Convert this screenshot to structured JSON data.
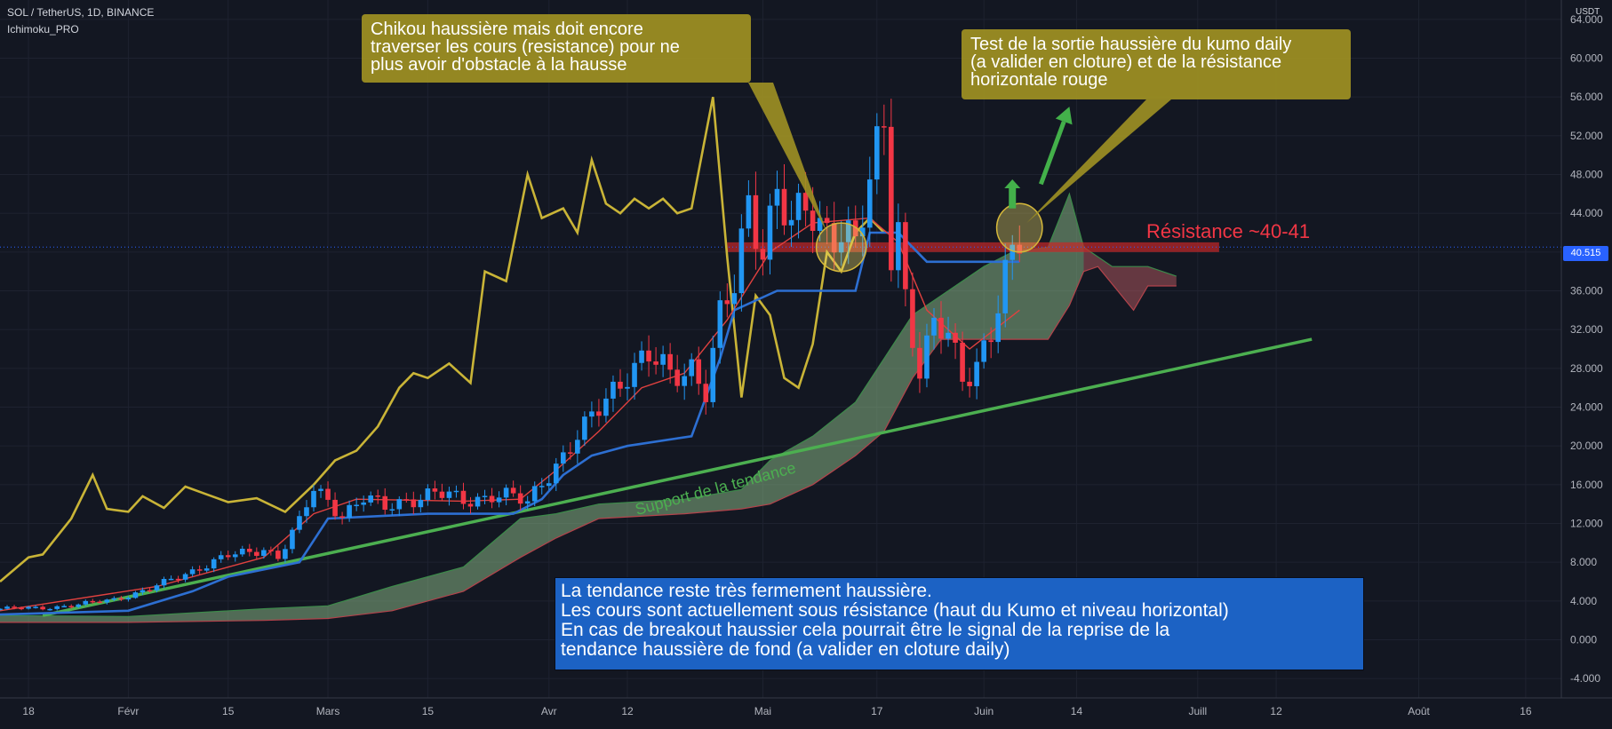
{
  "header": {
    "symbol_line": "SOL / TetherUS, 1D, BINANCE",
    "indicator": "Ichimoku_PRO"
  },
  "axis": {
    "unit": "USDT",
    "current_price": "40.515"
  },
  "annotations": {
    "chikou_note": "Chikou haussière mais doit encore\ntraverser les cours (resistance) pour ne\nplus avoir d'obstacle à la hausse",
    "kumo_note": "Test de la sortie haussière du kumo daily\n(a valider en cloture) et de la résistance\nhorizontale rouge",
    "resistance_label": "Résistance ~40-41",
    "trend_label": "Support de la tendance",
    "summary_note": "La tendance reste très fermement haussière.\nLes cours sont actuellement sous résistance (haut du Kumo et niveau horizontal)\nEn cas de breakout haussier cela pourrait être le signal de la reprise de la\ntendance haussière de fond (a valider en cloture daily)"
  },
  "colors": {
    "background": "#131722",
    "up_candle": "#2196f3",
    "down_candle": "#f23645",
    "chikou": "#c9b437",
    "kijun": "#2d6fd2",
    "tenkan": "#e0413f",
    "kumo_bull": "#8fbf8a",
    "kumo_bear": "#b85a60",
    "trendline": "#4caf50",
    "resistance": "#c62828",
    "note_yellow": "#a09123",
    "note_blue": "#1c62c4"
  },
  "chart_data": {
    "type": "candlestick",
    "title": "SOL / TetherUS, 1D, BINANCE",
    "ylabel": "USDT",
    "ylim": [
      -6,
      66
    ],
    "y_ticks": [
      -4,
      0,
      4,
      8,
      12,
      16,
      20,
      24,
      28,
      32,
      36,
      40,
      44,
      48,
      52,
      56,
      60,
      64
    ],
    "x_range": [
      "2021-01-14",
      "2021-08-21"
    ],
    "x_ticks": [
      {
        "date": "2021-01-18",
        "label": "18"
      },
      {
        "date": "2021-02-01",
        "label": "Févr"
      },
      {
        "date": "2021-02-15",
        "label": "15"
      },
      {
        "date": "2021-03-01",
        "label": "Mars"
      },
      {
        "date": "2021-03-15",
        "label": "15"
      },
      {
        "date": "2021-04-01",
        "label": "Avr"
      },
      {
        "date": "2021-04-12",
        "label": "12"
      },
      {
        "date": "2021-05-01",
        "label": "Mai"
      },
      {
        "date": "2021-05-17",
        "label": "17"
      },
      {
        "date": "2021-06-01",
        "label": "Juin"
      },
      {
        "date": "2021-06-14",
        "label": "14"
      },
      {
        "date": "2021-07-01",
        "label": "Juill"
      },
      {
        "date": "2021-07-12",
        "label": "12"
      },
      {
        "date": "2021-08-01",
        "label": "Août"
      },
      {
        "date": "2021-08-16",
        "label": "16"
      }
    ],
    "price_path": [
      [
        "2021-01-14",
        3.2
      ],
      [
        "2021-01-20",
        3.3
      ],
      [
        "2021-01-25",
        3.6
      ],
      [
        "2021-01-30",
        4.2
      ],
      [
        "2021-02-04",
        5.2
      ],
      [
        "2021-02-08",
        6.5
      ],
      [
        "2021-02-11",
        7.5
      ],
      [
        "2021-02-15",
        8.6
      ],
      [
        "2021-02-18",
        9.0
      ],
      [
        "2021-02-20",
        9.5
      ],
      [
        "2021-02-22",
        8.6
      ],
      [
        "2021-02-25",
        12.0
      ],
      [
        "2021-02-27",
        15.5
      ],
      [
        "2021-03-01",
        14.5
      ],
      [
        "2021-03-03",
        13.0
      ],
      [
        "2021-03-06",
        14.5
      ],
      [
        "2021-03-09",
        13.6
      ],
      [
        "2021-03-12",
        14.6
      ],
      [
        "2021-03-16",
        15.0
      ],
      [
        "2021-03-20",
        14.4
      ],
      [
        "2021-03-24",
        15.0
      ],
      [
        "2021-03-27",
        14.6
      ],
      [
        "2021-03-29",
        14.0
      ],
      [
        "2021-03-31",
        16.5
      ],
      [
        "2021-04-03",
        19.0
      ],
      [
        "2021-04-06",
        21.5
      ],
      [
        "2021-04-09",
        25.0
      ],
      [
        "2021-04-12",
        28.0
      ],
      [
        "2021-04-15",
        29.0
      ],
      [
        "2021-04-18",
        27.0
      ],
      [
        "2021-04-21",
        28.5
      ],
      [
        "2021-04-23",
        26.0
      ],
      [
        "2021-04-25",
        33.0
      ],
      [
        "2021-04-27",
        36.0
      ],
      [
        "2021-04-29",
        45.0
      ],
      [
        "2021-05-01",
        41.0
      ],
      [
        "2021-05-03",
        47.0
      ],
      [
        "2021-05-05",
        42.0
      ],
      [
        "2021-05-07",
        44.0
      ],
      [
        "2021-05-09",
        42.5
      ],
      [
        "2021-05-12",
        43.0
      ],
      [
        "2021-05-14",
        41.0
      ],
      [
        "2021-05-16",
        46.0
      ],
      [
        "2021-05-18",
        53.0
      ],
      [
        "2021-05-19",
        40.0
      ],
      [
        "2021-05-20",
        43.0
      ],
      [
        "2021-05-21",
        36.0
      ],
      [
        "2021-05-23",
        28.0
      ],
      [
        "2021-05-25",
        32.0
      ],
      [
        "2021-05-27",
        31.0
      ],
      [
        "2021-05-29",
        27.0
      ],
      [
        "2021-05-31",
        29.0
      ],
      [
        "2021-06-02",
        32.0
      ],
      [
        "2021-06-04",
        37.0
      ],
      [
        "2021-06-06",
        40.5
      ]
    ],
    "chikou_path": [
      [
        "2021-01-14",
        6.0
      ],
      [
        "2021-01-18",
        8.5
      ],
      [
        "2021-01-20",
        8.8
      ],
      [
        "2021-01-24",
        12.5
      ],
      [
        "2021-01-27",
        17.0
      ],
      [
        "2021-01-29",
        13.5
      ],
      [
        "2021-02-01",
        13.2
      ],
      [
        "2021-02-03",
        14.8
      ],
      [
        "2021-02-06",
        13.6
      ],
      [
        "2021-02-09",
        15.8
      ],
      [
        "2021-02-12",
        15.0
      ],
      [
        "2021-02-15",
        14.2
      ],
      [
        "2021-02-19",
        14.6
      ],
      [
        "2021-02-23",
        13.2
      ],
      [
        "2021-02-27",
        16.0
      ],
      [
        "2021-03-02",
        18.5
      ],
      [
        "2021-03-05",
        19.5
      ],
      [
        "2021-03-08",
        22.0
      ],
      [
        "2021-03-11",
        26.0
      ],
      [
        "2021-03-13",
        27.5
      ],
      [
        "2021-03-15",
        27.0
      ],
      [
        "2021-03-18",
        28.5
      ],
      [
        "2021-03-21",
        26.5
      ],
      [
        "2021-03-23",
        38.0
      ],
      [
        "2021-03-26",
        37.0
      ],
      [
        "2021-03-29",
        48.0
      ],
      [
        "2021-03-31",
        43.5
      ],
      [
        "2021-04-03",
        44.5
      ],
      [
        "2021-04-05",
        42.0
      ],
      [
        "2021-04-07",
        49.5
      ],
      [
        "2021-04-09",
        45.0
      ],
      [
        "2021-04-11",
        44.0
      ],
      [
        "2021-04-13",
        45.5
      ],
      [
        "2021-04-15",
        44.5
      ],
      [
        "2021-04-17",
        45.5
      ],
      [
        "2021-04-19",
        44.0
      ],
      [
        "2021-04-21",
        44.5
      ],
      [
        "2021-04-24",
        56.0
      ],
      [
        "2021-04-26",
        39.5
      ],
      [
        "2021-04-28",
        25.0
      ],
      [
        "2021-04-30",
        35.5
      ],
      [
        "2021-05-02",
        33.5
      ],
      [
        "2021-05-04",
        27.0
      ],
      [
        "2021-05-06",
        26.0
      ],
      [
        "2021-05-08",
        30.5
      ],
      [
        "2021-05-10",
        40.0
      ],
      [
        "2021-05-12",
        38.0
      ],
      [
        "2021-05-14",
        42.0
      ],
      [
        "2021-05-16",
        43.5
      ],
      [
        "2021-05-18",
        42.0
      ]
    ],
    "kijun_path": [
      [
        "2021-01-14",
        2.6
      ],
      [
        "2021-02-01",
        3.0
      ],
      [
        "2021-02-10",
        5.0
      ],
      [
        "2021-02-15",
        6.5
      ],
      [
        "2021-02-25",
        8.0
      ],
      [
        "2021-03-01",
        12.5
      ],
      [
        "2021-03-15",
        13.0
      ],
      [
        "2021-03-27",
        13.0
      ],
      [
        "2021-03-31",
        14.5
      ],
      [
        "2021-04-03",
        17.0
      ],
      [
        "2021-04-07",
        19.0
      ],
      [
        "2021-04-12",
        20.0
      ],
      [
        "2021-04-21",
        21.0
      ],
      [
        "2021-04-25",
        29.0
      ],
      [
        "2021-04-27",
        34.0
      ],
      [
        "2021-05-03",
        36.0
      ],
      [
        "2021-05-14",
        36.0
      ],
      [
        "2021-05-16",
        42.0
      ],
      [
        "2021-05-20",
        42.0
      ],
      [
        "2021-05-24",
        39.0
      ],
      [
        "2021-06-06",
        39.0
      ]
    ],
    "tenkan_path": [
      [
        "2021-01-14",
        3.0
      ],
      [
        "2021-02-05",
        5.5
      ],
      [
        "2021-02-20",
        8.5
      ],
      [
        "2021-02-27",
        13.0
      ],
      [
        "2021-03-05",
        14.5
      ],
      [
        "2021-03-20",
        14.3
      ],
      [
        "2021-03-28",
        14.5
      ],
      [
        "2021-04-02",
        17.5
      ],
      [
        "2021-04-08",
        21.5
      ],
      [
        "2021-04-14",
        26.0
      ],
      [
        "2021-04-20",
        27.5
      ],
      [
        "2021-04-26",
        33.0
      ],
      [
        "2021-05-02",
        40.0
      ],
      [
        "2021-05-08",
        43.0
      ],
      [
        "2021-05-16",
        43.5
      ],
      [
        "2021-05-20",
        41.0
      ],
      [
        "2021-05-24",
        34.0
      ],
      [
        "2021-05-30",
        30.0
      ],
      [
        "2021-06-06",
        34.0
      ]
    ],
    "kumo_upper": [
      [
        "2021-01-14",
        2.5
      ],
      [
        "2021-02-01",
        2.4
      ],
      [
        "2021-02-20",
        3.2
      ],
      [
        "2021-03-01",
        3.5
      ],
      [
        "2021-03-10",
        5.5
      ],
      [
        "2021-03-20",
        7.5
      ],
      [
        "2021-03-28",
        12.5
      ],
      [
        "2021-04-02",
        13.0
      ],
      [
        "2021-04-08",
        14.0
      ],
      [
        "2021-04-20",
        14.5
      ],
      [
        "2021-04-28",
        15.5
      ],
      [
        "2021-05-02",
        18.5
      ],
      [
        "2021-05-08",
        21.0
      ],
      [
        "2021-05-14",
        24.5
      ],
      [
        "2021-05-18",
        29.0
      ],
      [
        "2021-05-22",
        33.5
      ],
      [
        "2021-05-26",
        35.5
      ],
      [
        "2021-06-01",
        38.5
      ],
      [
        "2021-06-05",
        40.0
      ],
      [
        "2021-06-10",
        40.5
      ],
      [
        "2021-06-13",
        46.0
      ],
      [
        "2021-06-15",
        40.5
      ],
      [
        "2021-06-19",
        38.5
      ],
      [
        "2021-06-24",
        38.5
      ],
      [
        "2021-06-28",
        37.5
      ]
    ],
    "kumo_lower": [
      [
        "2021-01-14",
        1.8
      ],
      [
        "2021-02-01",
        1.8
      ],
      [
        "2021-02-20",
        2.0
      ],
      [
        "2021-03-01",
        2.2
      ],
      [
        "2021-03-10",
        3.0
      ],
      [
        "2021-03-20",
        5.0
      ],
      [
        "2021-03-28",
        8.5
      ],
      [
        "2021-04-02",
        10.5
      ],
      [
        "2021-04-08",
        12.5
      ],
      [
        "2021-04-20",
        13.0
      ],
      [
        "2021-04-28",
        13.5
      ],
      [
        "2021-05-02",
        14.0
      ],
      [
        "2021-05-08",
        16.0
      ],
      [
        "2021-05-14",
        19.0
      ],
      [
        "2021-05-18",
        21.5
      ],
      [
        "2021-05-22",
        27.0
      ],
      [
        "2021-05-26",
        31.0
      ],
      [
        "2021-06-01",
        31.0
      ],
      [
        "2021-06-06",
        31.0
      ],
      [
        "2021-06-10",
        31.0
      ],
      [
        "2021-06-13",
        34.5
      ],
      [
        "2021-06-15",
        38.0
      ],
      [
        "2021-06-17",
        38.5
      ],
      [
        "2021-06-22",
        34.0
      ],
      [
        "2021-06-24",
        36.5
      ],
      [
        "2021-06-28",
        36.5
      ]
    ],
    "resistance_zone": {
      "start": "2021-04-26",
      "end": "2021-07-04",
      "from": 40.0,
      "to": 41.0
    },
    "trendline": {
      "from": [
        "2021-01-20",
        2.5
      ],
      "to": [
        "2021-07-17",
        31.0
      ]
    },
    "green_arrows": [
      {
        "from": [
          "2021-06-09",
          47.0
        ],
        "to": [
          "2021-06-13",
          55.0
        ]
      },
      {
        "from": [
          "2021-06-05",
          44.5
        ],
        "to": [
          "2021-06-05",
          47.5
        ]
      }
    ],
    "highlight_ellipses": [
      {
        "center": [
          "2021-05-12",
          40.5
        ],
        "rx_days": 3.5,
        "ry": 2.5
      },
      {
        "center": [
          "2021-06-06",
          42.5
        ],
        "rx_days": 3.2,
        "ry": 2.5
      }
    ]
  }
}
